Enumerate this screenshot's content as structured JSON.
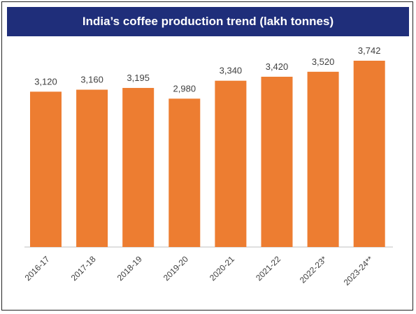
{
  "chart_data": {
    "type": "bar",
    "title": "India’s coffee production trend (lakh tonnes)",
    "categories": [
      "2016-17",
      "2017-18",
      "2018-19",
      "2019-20",
      "2020-21",
      "2021-22",
      "2022-23*",
      "2023-24**"
    ],
    "values": [
      3120,
      3160,
      3195,
      2980,
      3340,
      3420,
      3520,
      3742
    ],
    "value_labels": [
      "3,120",
      "3,160",
      "3,195",
      "2,980",
      "3,340",
      "3,420",
      "3,520",
      "3,742"
    ],
    "xlabel": "",
    "ylabel": "",
    "ylim": [
      0,
      3742
    ],
    "grid": false,
    "legend": "none",
    "colors": {
      "bar": "#ed7d31",
      "title_bg": "#1f2e7a",
      "title_text": "#ffffff",
      "axis": "#bfbfbf",
      "text": "#404040"
    }
  }
}
